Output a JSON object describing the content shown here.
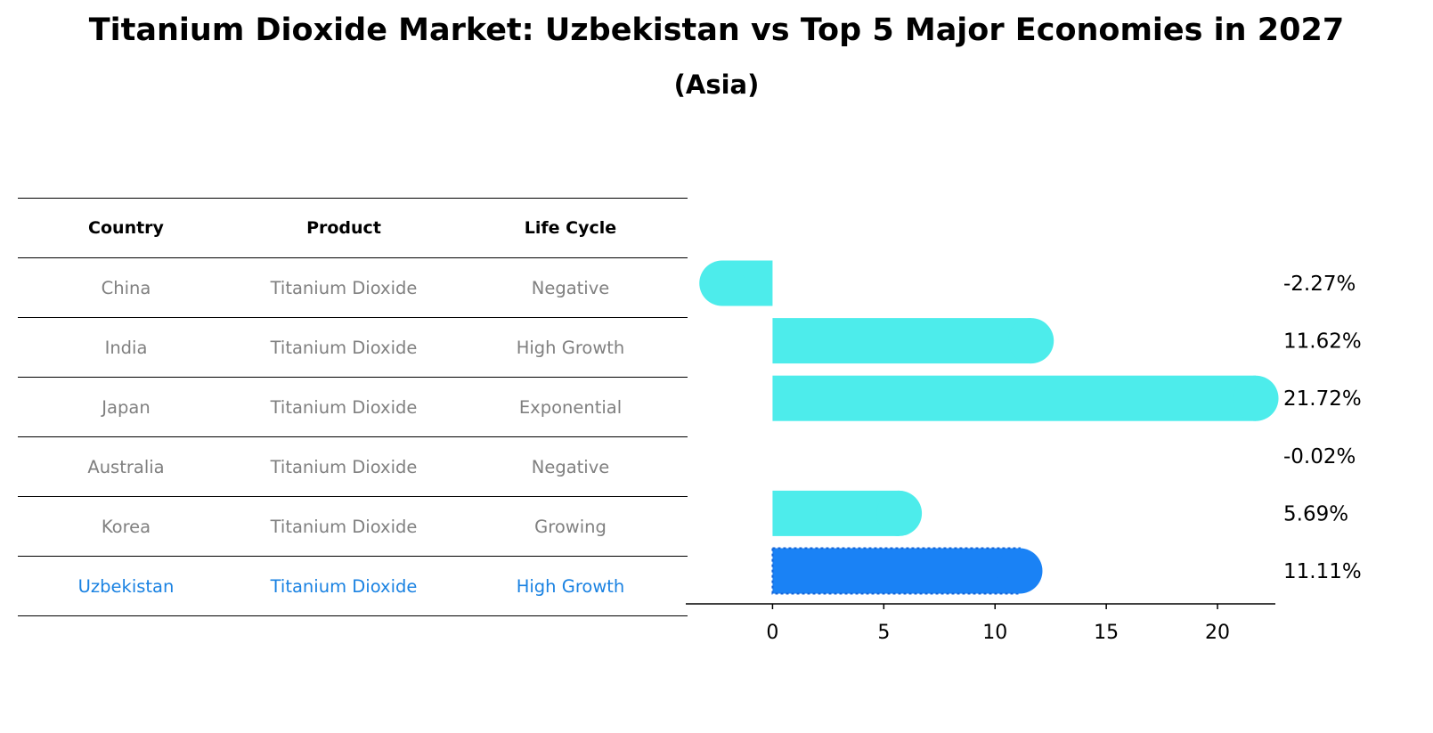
{
  "title": "Titanium Dioxide Market: Uzbekistan vs Top 5 Major Economies in 2027",
  "subtitle": "(Asia)",
  "table": {
    "headers": [
      "Country",
      "Product",
      "Life Cycle"
    ],
    "rows": [
      {
        "country": "China",
        "product": "Titanium Dioxide",
        "life_cycle": "Negative"
      },
      {
        "country": "India",
        "product": "Titanium Dioxide",
        "life_cycle": "High Growth"
      },
      {
        "country": "Japan",
        "product": "Titanium Dioxide",
        "life_cycle": "Exponential"
      },
      {
        "country": "Australia",
        "product": "Titanium Dioxide",
        "life_cycle": "Negative"
      },
      {
        "country": "Korea",
        "product": "Titanium Dioxide",
        "life_cycle": "Growing"
      },
      {
        "country": "Uzbekistan",
        "product": "Titanium Dioxide",
        "life_cycle": "High Growth"
      }
    ]
  },
  "colors": {
    "bar": "#4deceb",
    "highlight_bar": "#1a82f5",
    "highlight_text": "#1a82e2",
    "muted_text": "#808080"
  },
  "chart_data": {
    "type": "bar",
    "orientation": "horizontal",
    "categories": [
      "China",
      "India",
      "Japan",
      "Australia",
      "Korea",
      "Uzbekistan"
    ],
    "values": [
      -2.27,
      11.62,
      21.72,
      -0.02,
      5.69,
      11.11
    ],
    "value_labels": [
      "-2.27%",
      "11.62%",
      "21.72%",
      "-0.02%",
      "5.69%",
      "11.11%"
    ],
    "highlight": "Uzbekistan",
    "xlim": [
      -3.5,
      23
    ],
    "xticks": [
      0,
      5,
      10,
      15,
      20
    ],
    "xlabel": "",
    "ylabel": "",
    "grid": false
  }
}
